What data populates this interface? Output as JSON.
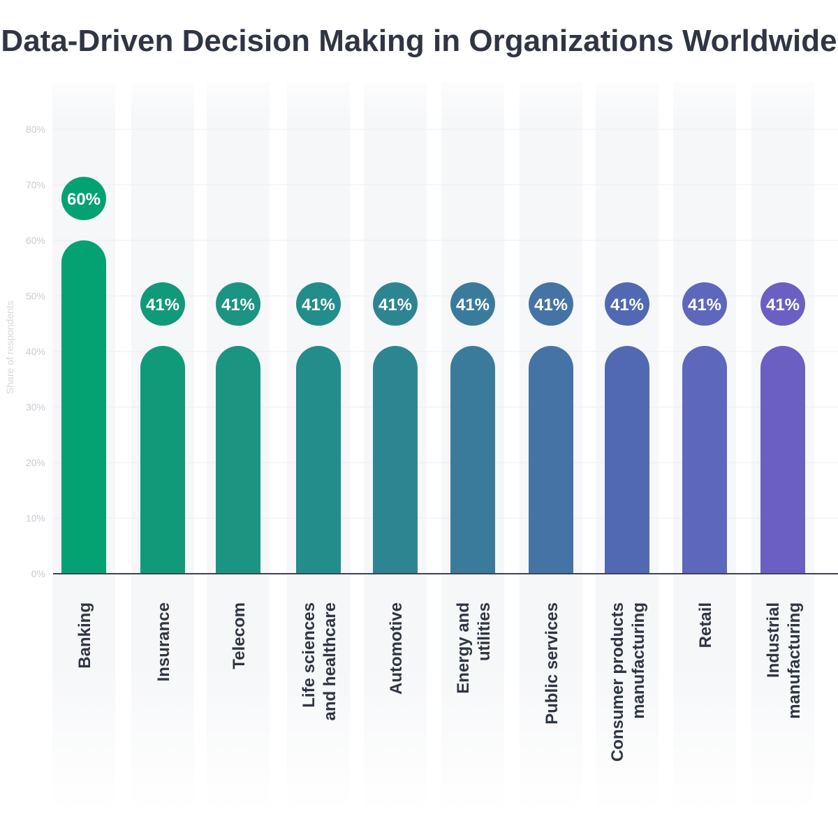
{
  "chart_data": {
    "type": "bar",
    "title": "Data-Driven Decision Making in Organizations Worldwide",
    "ylabel": "Share of respondents",
    "xlabel": "",
    "ylim": [
      0,
      80
    ],
    "yticks": [
      "0%",
      "10%",
      "20%",
      "30%",
      "40%",
      "50%",
      "60%",
      "70%",
      "80%"
    ],
    "grid": true,
    "categories": [
      [
        "Banking"
      ],
      [
        "Insurance"
      ],
      [
        "Telecom"
      ],
      [
        "Life sciences",
        "and healthcare"
      ],
      [
        "Automotive"
      ],
      [
        "Energy and",
        "utilities"
      ],
      [
        "Public services"
      ],
      [
        "Consumer products",
        "manufacturing"
      ],
      [
        "Retail"
      ],
      [
        "Industrial",
        "manufacturing"
      ]
    ],
    "values": [
      60,
      41,
      41,
      41,
      41,
      41,
      41,
      41,
      41,
      41
    ],
    "data_labels": [
      "60%",
      "41%",
      "41%",
      "41%",
      "41%",
      "41%",
      "41%",
      "41%",
      "41%",
      "41%"
    ],
    "colors": [
      "#04a273",
      "#119a7a",
      "#1b9482",
      "#228d8a",
      "#2e8592",
      "#3a7b9c",
      "#4673a6",
      "#5069b2",
      "#5d67bb",
      "#6c5fc3"
    ]
  }
}
